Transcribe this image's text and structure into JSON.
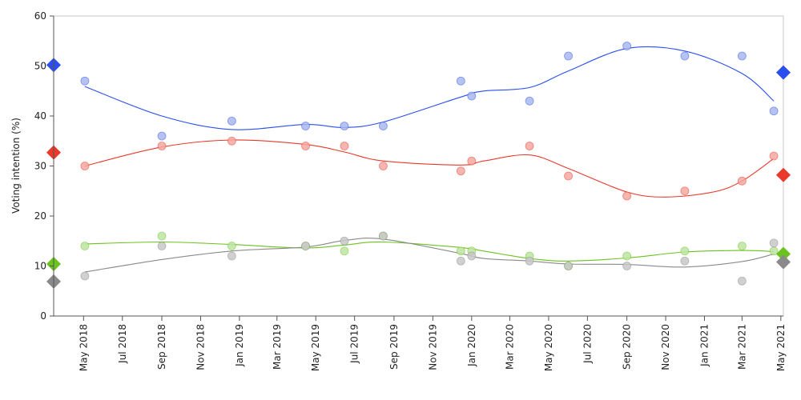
{
  "chart_data": {
    "type": "scatter",
    "title": "",
    "ylabel": "Voting intention (%)",
    "xlabel": "",
    "ylim": [
      0,
      60
    ],
    "yticks": [
      0,
      10,
      20,
      30,
      40,
      50,
      60
    ],
    "xlim": [
      "2018-03-15",
      "2021-05-05"
    ],
    "xticks": [
      {
        "date": "2018-05-01",
        "label": "May 2018"
      },
      {
        "date": "2018-07-01",
        "label": "Jul 2018"
      },
      {
        "date": "2018-09-01",
        "label": "Sep 2018"
      },
      {
        "date": "2018-11-01",
        "label": "Nov 2018"
      },
      {
        "date": "2019-01-01",
        "label": "Jan 2019"
      },
      {
        "date": "2019-03-01",
        "label": "Mar 2019"
      },
      {
        "date": "2019-05-01",
        "label": "May 2019"
      },
      {
        "date": "2019-07-01",
        "label": "Jul 2019"
      },
      {
        "date": "2019-09-01",
        "label": "Sep 2019"
      },
      {
        "date": "2019-11-01",
        "label": "Nov 2019"
      },
      {
        "date": "2020-01-01",
        "label": "Jan 2020"
      },
      {
        "date": "2020-03-01",
        "label": "Mar 2020"
      },
      {
        "date": "2020-05-01",
        "label": "May 2020"
      },
      {
        "date": "2020-07-01",
        "label": "Jul 2020"
      },
      {
        "date": "2020-09-01",
        "label": "Sep 2020"
      },
      {
        "date": "2020-11-01",
        "label": "Nov 2020"
      },
      {
        "date": "2021-01-01",
        "label": "Jan 2021"
      },
      {
        "date": "2021-03-01",
        "label": "Mar 2021"
      },
      {
        "date": "2021-05-01",
        "label": "May 2021"
      }
    ],
    "grid": false,
    "legend": "none",
    "series": [
      {
        "color": "#2a4ef0",
        "point_color": "#a9b8ef",
        "election_start": {
          "date": "2018-03-15",
          "value": 50.2
        },
        "election_end": {
          "date": "2021-05-05",
          "value": 48.7
        },
        "points": [
          {
            "date": "2018-05-03",
            "value": 47
          },
          {
            "date": "2018-09-01",
            "value": 36
          },
          {
            "date": "2018-12-20",
            "value": 39
          },
          {
            "date": "2019-04-15",
            "value": 38
          },
          {
            "date": "2019-06-15",
            "value": 38
          },
          {
            "date": "2019-08-15",
            "value": 38
          },
          {
            "date": "2019-12-15",
            "value": 47
          },
          {
            "date": "2020-01-01",
            "value": 44
          },
          {
            "date": "2020-04-01",
            "value": 43
          },
          {
            "date": "2020-06-01",
            "value": 52
          },
          {
            "date": "2020-09-01",
            "value": 54
          },
          {
            "date": "2020-12-01",
            "value": 52
          },
          {
            "date": "2021-03-01",
            "value": 52
          },
          {
            "date": "2021-04-20",
            "value": 41
          }
        ],
        "trend": [
          {
            "date": "2018-05-03",
            "value": 45.9
          },
          {
            "date": "2018-09-01",
            "value": 40.0
          },
          {
            "date": "2018-12-20",
            "value": 37.3
          },
          {
            "date": "2019-04-15",
            "value": 38.3
          },
          {
            "date": "2019-06-15",
            "value": 37.7
          },
          {
            "date": "2019-08-15",
            "value": 38.8
          },
          {
            "date": "2019-12-15",
            "value": 43.8
          },
          {
            "date": "2020-01-20",
            "value": 45.0
          },
          {
            "date": "2020-04-01",
            "value": 45.7
          },
          {
            "date": "2020-06-01",
            "value": 49.0
          },
          {
            "date": "2020-09-01",
            "value": 53.5
          },
          {
            "date": "2020-12-01",
            "value": 53.0
          },
          {
            "date": "2021-03-01",
            "value": 48.5
          },
          {
            "date": "2021-04-20",
            "value": 43.0
          }
        ]
      },
      {
        "color": "#e8392a",
        "point_color": "#f4a8a0",
        "election_start": {
          "date": "2018-03-15",
          "value": 32.7
        },
        "election_end": {
          "date": "2021-05-05",
          "value": 28.2
        },
        "points": [
          {
            "date": "2018-05-03",
            "value": 30
          },
          {
            "date": "2018-09-01",
            "value": 34
          },
          {
            "date": "2018-12-20",
            "value": 35
          },
          {
            "date": "2019-04-15",
            "value": 34
          },
          {
            "date": "2019-06-15",
            "value": 34
          },
          {
            "date": "2019-08-15",
            "value": 30
          },
          {
            "date": "2019-12-15",
            "value": 29
          },
          {
            "date": "2020-01-01",
            "value": 31
          },
          {
            "date": "2020-04-01",
            "value": 34
          },
          {
            "date": "2020-06-01",
            "value": 28
          },
          {
            "date": "2020-09-01",
            "value": 24
          },
          {
            "date": "2020-12-01",
            "value": 25
          },
          {
            "date": "2021-03-01",
            "value": 27
          },
          {
            "date": "2021-04-20",
            "value": 32
          }
        ],
        "trend": [
          {
            "date": "2018-05-03",
            "value": 30.0
          },
          {
            "date": "2018-09-01",
            "value": 33.8
          },
          {
            "date": "2018-12-20",
            "value": 35.2
          },
          {
            "date": "2019-04-15",
            "value": 34.3
          },
          {
            "date": "2019-06-15",
            "value": 32.8
          },
          {
            "date": "2019-08-15",
            "value": 31.0
          },
          {
            "date": "2019-12-15",
            "value": 30.2
          },
          {
            "date": "2020-01-20",
            "value": 31.0
          },
          {
            "date": "2020-04-01",
            "value": 32.2
          },
          {
            "date": "2020-06-01",
            "value": 29.5
          },
          {
            "date": "2020-09-01",
            "value": 24.8
          },
          {
            "date": "2020-11-01",
            "value": 23.8
          },
          {
            "date": "2021-01-15",
            "value": 24.8
          },
          {
            "date": "2021-03-01",
            "value": 27.0
          },
          {
            "date": "2021-04-20",
            "value": 31.5
          }
        ]
      },
      {
        "color": "#6cc21f",
        "point_color": "#bde5a3",
        "election_start": {
          "date": "2018-03-15",
          "value": 10.4
        },
        "election_end": {
          "date": "2021-05-05",
          "value": 12.4
        },
        "points": [
          {
            "date": "2018-05-03",
            "value": 14
          },
          {
            "date": "2018-09-01",
            "value": 16
          },
          {
            "date": "2018-12-20",
            "value": 14
          },
          {
            "date": "2019-04-15",
            "value": 14
          },
          {
            "date": "2019-06-15",
            "value": 13
          },
          {
            "date": "2019-08-15",
            "value": 16
          },
          {
            "date": "2019-12-15",
            "value": 13
          },
          {
            "date": "2020-01-01",
            "value": 13
          },
          {
            "date": "2020-04-01",
            "value": 12
          },
          {
            "date": "2020-06-01",
            "value": 10
          },
          {
            "date": "2020-09-01",
            "value": 12
          },
          {
            "date": "2020-12-01",
            "value": 13
          },
          {
            "date": "2021-03-01",
            "value": 14
          },
          {
            "date": "2021-04-20",
            "value": 13
          }
        ],
        "trend": [
          {
            "date": "2018-05-03",
            "value": 14.4
          },
          {
            "date": "2018-09-01",
            "value": 14.8
          },
          {
            "date": "2018-12-20",
            "value": 14.3
          },
          {
            "date": "2019-04-15",
            "value": 13.6
          },
          {
            "date": "2019-06-15",
            "value": 14.2
          },
          {
            "date": "2019-08-15",
            "value": 14.8
          },
          {
            "date": "2019-12-15",
            "value": 13.7
          },
          {
            "date": "2020-01-20",
            "value": 13.0
          },
          {
            "date": "2020-04-01",
            "value": 11.5
          },
          {
            "date": "2020-06-01",
            "value": 11.0
          },
          {
            "date": "2020-09-01",
            "value": 11.6
          },
          {
            "date": "2020-12-01",
            "value": 12.8
          },
          {
            "date": "2021-03-01",
            "value": 13.1
          },
          {
            "date": "2021-04-20",
            "value": 12.9
          }
        ]
      },
      {
        "color": "#8a8a8a",
        "point_color": "#c8c8c8",
        "election_start": {
          "date": "2018-03-15",
          "value": 6.9
        },
        "election_end": {
          "date": "2021-05-05",
          "value": 10.8
        },
        "points": [
          {
            "date": "2018-05-03",
            "value": 8
          },
          {
            "date": "2018-09-01",
            "value": 14
          },
          {
            "date": "2018-12-20",
            "value": 12
          },
          {
            "date": "2019-04-15",
            "value": 14
          },
          {
            "date": "2019-06-15",
            "value": 15
          },
          {
            "date": "2019-08-15",
            "value": 16
          },
          {
            "date": "2019-12-15",
            "value": 11
          },
          {
            "date": "2020-01-01",
            "value": 12
          },
          {
            "date": "2020-04-01",
            "value": 11
          },
          {
            "date": "2020-06-01",
            "value": 10
          },
          {
            "date": "2020-09-01",
            "value": 10
          },
          {
            "date": "2020-12-01",
            "value": 11
          },
          {
            "date": "2021-03-01",
            "value": 7
          },
          {
            "date": "2021-04-20",
            "value": 14.6
          }
        ],
        "trend": [
          {
            "date": "2018-05-03",
            "value": 8.8
          },
          {
            "date": "2018-09-01",
            "value": 11.3
          },
          {
            "date": "2018-12-20",
            "value": 13.0
          },
          {
            "date": "2019-04-15",
            "value": 13.8
          },
          {
            "date": "2019-06-15",
            "value": 15.1
          },
          {
            "date": "2019-08-15",
            "value": 15.4
          },
          {
            "date": "2019-12-15",
            "value": 12.5
          },
          {
            "date": "2020-01-20",
            "value": 11.5
          },
          {
            "date": "2020-04-01",
            "value": 11.0
          },
          {
            "date": "2020-06-01",
            "value": 10.4
          },
          {
            "date": "2020-09-01",
            "value": 10.3
          },
          {
            "date": "2020-12-01",
            "value": 9.8
          },
          {
            "date": "2021-03-01",
            "value": 10.9
          },
          {
            "date": "2021-04-20",
            "value": 12.4
          }
        ]
      }
    ]
  }
}
